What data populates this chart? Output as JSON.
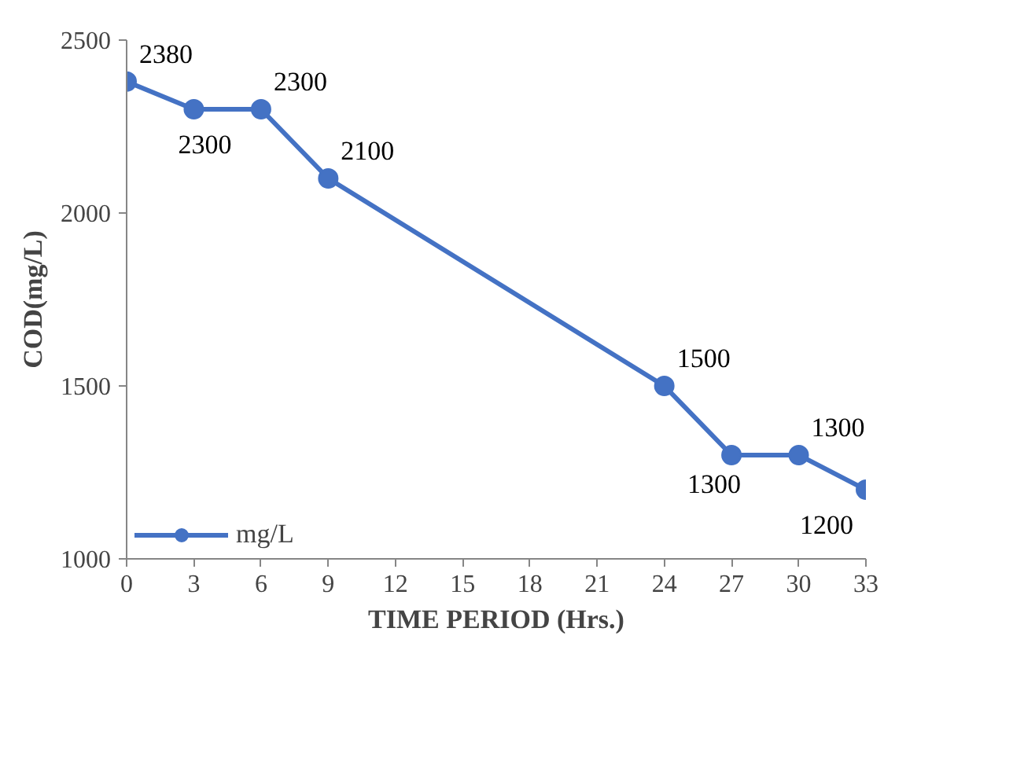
{
  "chart_data": {
    "type": "line",
    "xlabel": "TIME PERIOD (Hrs.)",
    "ylabel": "COD(mg/L)",
    "x": [
      0,
      3,
      6,
      9,
      24,
      27,
      30,
      33
    ],
    "series": [
      {
        "name": "mg/L",
        "color": "#4472c4",
        "values": [
          2380,
          2300,
          2300,
          2100,
          1500,
          1300,
          1300,
          1200
        ]
      }
    ],
    "xlim": [
      0,
      33
    ],
    "xticks": [
      0,
      3,
      6,
      9,
      12,
      15,
      18,
      21,
      24,
      27,
      30,
      33
    ],
    "ylim": [
      1000,
      2500
    ],
    "yticks": [
      1000,
      1500,
      2000,
      2500
    ],
    "grid": false,
    "legend": "bottom left",
    "marker": "circle",
    "line_style": "solid",
    "data_labels": true
  }
}
